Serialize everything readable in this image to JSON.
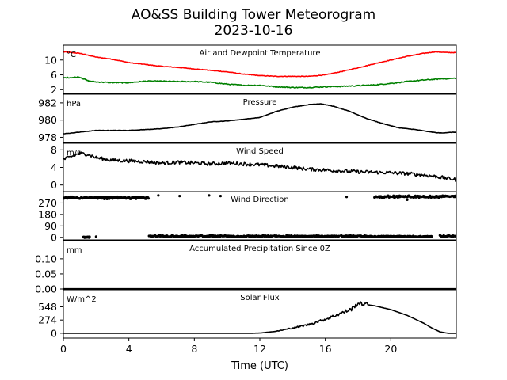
{
  "title": "AO&SS Building Tower Meteorogram",
  "date": "2023-10-16",
  "xlabel": "Time (UTC)",
  "x_ticks": [
    0,
    4,
    8,
    12,
    16,
    20
  ],
  "xlim": [
    0,
    24
  ],
  "colors": {
    "temperature": "#ff0000",
    "dewpoint": "#008000",
    "black": "#000000"
  },
  "chart_data": [
    {
      "type": "line",
      "title": "Air and Dewpoint Temperature",
      "unit": "°C",
      "ylim": [
        1,
        14
      ],
      "yticks": [
        2,
        6,
        10
      ],
      "series": [
        {
          "key": "temperature",
          "color": "#ff0000",
          "points": [
            [
              0,
              12.2
            ],
            [
              1,
              11.8
            ],
            [
              2,
              10.8
            ],
            [
              3,
              10.2
            ],
            [
              4,
              9.3
            ],
            [
              5,
              8.8
            ],
            [
              6,
              8.3
            ],
            [
              7,
              8.0
            ],
            [
              8,
              7.6
            ],
            [
              9,
              7.2
            ],
            [
              10,
              6.8
            ],
            [
              11,
              6.2
            ],
            [
              12,
              5.8
            ],
            [
              13,
              5.6
            ],
            [
              14,
              5.6
            ],
            [
              15,
              5.6
            ],
            [
              16,
              6.0
            ],
            [
              17,
              6.9
            ],
            [
              18,
              7.9
            ],
            [
              19,
              9.0
            ],
            [
              20,
              10.0
            ],
            [
              21,
              11.0
            ],
            [
              22,
              11.8
            ],
            [
              22.7,
              12.2
            ],
            [
              23.5,
              12.0
            ],
            [
              24,
              12.0
            ]
          ],
          "noise": 0.15
        },
        {
          "key": "dewpoint",
          "color": "#008000",
          "points": [
            [
              0,
              5.2
            ],
            [
              1,
              5.4
            ],
            [
              1.5,
              4.4
            ],
            [
              2,
              4.1
            ],
            [
              3,
              3.9
            ],
            [
              4,
              3.9
            ],
            [
              5,
              4.3
            ],
            [
              6,
              4.3
            ],
            [
              7,
              4.2
            ],
            [
              8,
              4.2
            ],
            [
              9,
              4.0
            ],
            [
              10,
              3.5
            ],
            [
              11,
              3.2
            ],
            [
              12,
              3.2
            ],
            [
              13,
              2.8
            ],
            [
              14,
              2.6
            ],
            [
              15,
              2.6
            ],
            [
              16,
              2.8
            ],
            [
              17,
              2.9
            ],
            [
              18,
              3.1
            ],
            [
              19,
              3.3
            ],
            [
              20,
              3.7
            ],
            [
              21,
              4.2
            ],
            [
              22,
              4.6
            ],
            [
              23,
              4.9
            ],
            [
              24,
              5.1
            ]
          ],
          "noise": 0.25
        }
      ]
    },
    {
      "type": "line",
      "title": "Pressure",
      "unit": "hPa",
      "ylim": [
        977.4,
        983.0
      ],
      "yticks": [
        978,
        980,
        982
      ],
      "series": [
        {
          "key": "pressure",
          "color": "#000000",
          "points": [
            [
              0,
              978.4
            ],
            [
              1,
              978.6
            ],
            [
              2,
              978.8
            ],
            [
              3,
              978.8
            ],
            [
              4,
              978.8
            ],
            [
              5,
              978.9
            ],
            [
              6,
              979.0
            ],
            [
              7,
              979.2
            ],
            [
              8,
              979.5
            ],
            [
              9,
              979.8
            ],
            [
              10,
              979.9
            ],
            [
              11,
              980.1
            ],
            [
              12,
              980.3
            ],
            [
              13,
              981.0
            ],
            [
              14,
              981.5
            ],
            [
              15,
              981.8
            ],
            [
              15.7,
              981.9
            ],
            [
              16.5,
              981.6
            ],
            [
              17.5,
              981.0
            ],
            [
              18.5,
              980.2
            ],
            [
              19.5,
              979.6
            ],
            [
              20.5,
              979.1
            ],
            [
              21.5,
              978.9
            ],
            [
              22.5,
              978.6
            ],
            [
              23,
              978.5
            ],
            [
              24,
              978.6
            ]
          ],
          "noise": 0.04
        }
      ]
    },
    {
      "type": "line",
      "title": "Wind Speed",
      "unit": "m/s",
      "ylim": [
        -1.5,
        9.5
      ],
      "yticks": [
        0,
        4,
        8
      ],
      "series": [
        {
          "key": "wind_speed",
          "color": "#000000",
          "points": [
            [
              0,
              5.8
            ],
            [
              0.5,
              6.5
            ],
            [
              1,
              7.2
            ],
            [
              1.5,
              7.0
            ],
            [
              2,
              6.2
            ],
            [
              3,
              5.6
            ],
            [
              4,
              5.5
            ],
            [
              5,
              5.3
            ],
            [
              6,
              5.0
            ],
            [
              7,
              5.2
            ],
            [
              8,
              5.0
            ],
            [
              9,
              4.8
            ],
            [
              10,
              5.0
            ],
            [
              11,
              4.8
            ],
            [
              12,
              4.6
            ],
            [
              13,
              4.3
            ],
            [
              14,
              4.0
            ],
            [
              15,
              3.6
            ],
            [
              16,
              3.4
            ],
            [
              17,
              3.2
            ],
            [
              18,
              3.0
            ],
            [
              19,
              2.9
            ],
            [
              20,
              2.8
            ],
            [
              21,
              2.6
            ],
            [
              22,
              2.3
            ],
            [
              23,
              1.8
            ],
            [
              24,
              1.2
            ]
          ],
          "noise": 0.8
        }
      ]
    },
    {
      "type": "scatter",
      "title": "Wind Direction",
      "unit": "",
      "ylim": [
        -20,
        360
      ],
      "yticks": [
        0,
        90,
        180,
        270
      ],
      "series": [
        {
          "key": "wind_direction",
          "color": "#000000",
          "segments": [
            [
              0.0,
              5.2,
              305,
              318
            ],
            [
              1.2,
              1.6,
              0,
              2
            ],
            [
              5.2,
              18.5,
              5,
              12
            ],
            [
              18.5,
              22.5,
              5,
              8
            ],
            [
              19.0,
              23.0,
              315,
              325
            ],
            [
              23.0,
              24.0,
              320,
              325
            ],
            [
              23.0,
              24.0,
              8,
              12
            ]
          ],
          "noise": 8
        }
      ]
    },
    {
      "type": "line",
      "title": "Accumulated Precipitation Since 0Z",
      "unit": "mm",
      "ylim": [
        0,
        0.16
      ],
      "yticks": [
        0.0,
        0.05,
        0.1
      ],
      "series": [
        {
          "key": "precip",
          "color": "#000000",
          "points": [
            [
              0,
              0
            ],
            [
              24,
              0
            ]
          ],
          "noise": 0
        }
      ]
    },
    {
      "type": "line",
      "title": "Solar Flux",
      "unit": "W/m^2",
      "ylim": [
        -100,
        900
      ],
      "yticks": [
        0,
        274,
        548
      ],
      "series": [
        {
          "key": "solar",
          "color": "#000000",
          "points": [
            [
              0,
              0
            ],
            [
              11.5,
              0
            ],
            [
              12,
              5
            ],
            [
              13,
              40
            ],
            [
              14,
              110
            ],
            [
              15,
              180
            ],
            [
              16,
              290
            ],
            [
              17,
              420
            ],
            [
              17.6,
              500
            ],
            [
              18,
              620
            ],
            [
              19,
              570
            ],
            [
              20,
              490
            ],
            [
              21,
              370
            ],
            [
              22,
              210
            ],
            [
              22.5,
              110
            ],
            [
              23,
              30
            ],
            [
              23.5,
              0
            ],
            [
              24,
              0
            ]
          ],
          "noise": 40
        }
      ]
    }
  ]
}
